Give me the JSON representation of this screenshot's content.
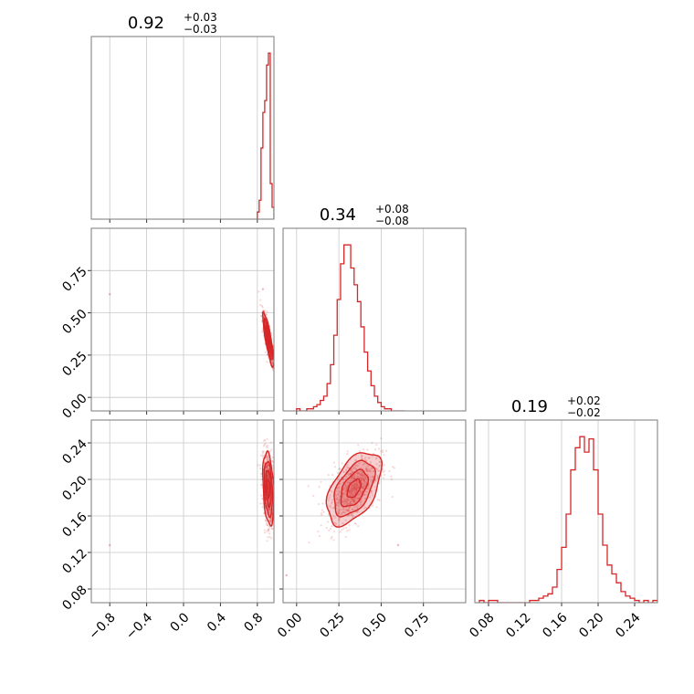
{
  "chart_data": {
    "type": "corner",
    "color": "#d62728",
    "parameters": [
      {
        "title_value": "0.92",
        "title_plus": "+0.03",
        "title_minus": "−0.03",
        "range": [
          -1.0,
          0.98
        ],
        "ticks": [
          -0.8,
          -0.4,
          0.0,
          0.4,
          0.8
        ],
        "tick_labels": [
          "−0.8",
          "−0.4",
          "0.0",
          "0.4",
          "0.8"
        ],
        "hist_bins": [
          0.8,
          0.82,
          0.84,
          0.86,
          0.88,
          0.9,
          0.92,
          0.94,
          0.96,
          0.98
        ],
        "hist_counts": [
          3,
          8,
          30,
          45,
          50,
          65,
          70,
          15,
          5
        ]
      },
      {
        "title_value": "0.34",
        "title_plus": "+0.08",
        "title_minus": "−0.08",
        "range": [
          -0.08,
          1.0
        ],
        "ticks": [
          0.0,
          0.25,
          0.5,
          0.75
        ],
        "tick_labels": [
          "0.00",
          "0.25",
          "0.50",
          "0.75"
        ],
        "hist_bins": [
          0.0,
          0.02,
          0.04,
          0.06,
          0.08,
          0.1,
          0.12,
          0.14,
          0.16,
          0.18,
          0.2,
          0.22,
          0.24,
          0.26,
          0.28,
          0.3,
          0.32,
          0.34,
          0.36,
          0.38,
          0.4,
          0.42,
          0.44,
          0.46,
          0.48,
          0.5,
          0.52,
          0.54,
          0.56,
          0.58,
          0.6,
          0.62,
          0.64
        ],
        "hist_counts": [
          1,
          0,
          0,
          1,
          1,
          2,
          3,
          5,
          7,
          13,
          22,
          36,
          53,
          70,
          79,
          79,
          68,
          60,
          52,
          40,
          28,
          19,
          12,
          7,
          4,
          2,
          1,
          1,
          0,
          0,
          0,
          0
        ]
      },
      {
        "title_value": "0.19",
        "title_plus": "+0.02",
        "title_minus": "−0.02",
        "range": [
          0.065,
          0.265
        ],
        "ticks": [
          0.08,
          0.12,
          0.16,
          0.2,
          0.24
        ],
        "tick_labels": [
          "0.08",
          "0.12",
          "0.16",
          "0.20",
          "0.24"
        ],
        "hist_bins": [
          0.07,
          0.075,
          0.08,
          0.085,
          0.09,
          0.095,
          0.1,
          0.105,
          0.11,
          0.115,
          0.12,
          0.125,
          0.13,
          0.135,
          0.14,
          0.145,
          0.15,
          0.155,
          0.16,
          0.165,
          0.17,
          0.175,
          0.18,
          0.185,
          0.19,
          0.195,
          0.2,
          0.205,
          0.21,
          0.215,
          0.22,
          0.225,
          0.23,
          0.235,
          0.24,
          0.245,
          0.25,
          0.255,
          0.26,
          0.265
        ],
        "hist_counts": [
          1,
          0,
          1,
          1,
          0,
          0,
          0,
          0,
          0,
          0,
          0,
          1,
          1,
          2,
          3,
          4,
          7,
          15,
          25,
          40,
          60,
          70,
          75,
          68,
          74,
          60,
          40,
          26,
          17,
          13,
          9,
          5,
          3,
          2,
          1,
          0,
          1,
          0,
          1
        ]
      }
    ],
    "pairs": [
      {
        "x_param": 0,
        "y_param": 1,
        "center": [
          0.92,
          0.34
        ],
        "sigma": [
          0.03,
          0.08
        ],
        "correlation": -0.85,
        "outliers": [
          [
            -0.8,
            0.61
          ],
          [
            0.86,
            0.64
          ]
        ]
      },
      {
        "x_param": 0,
        "y_param": 2,
        "center": [
          0.92,
          0.19
        ],
        "sigma": [
          0.03,
          0.02
        ],
        "correlation": -0.3,
        "outliers": [
          [
            -0.8,
            0.128
          ]
        ]
      },
      {
        "x_param": 1,
        "y_param": 2,
        "center": [
          0.34,
          0.19
        ],
        "sigma": [
          0.08,
          0.02
        ],
        "correlation": 0.5,
        "outliers": [
          [
            -0.06,
            0.095
          ],
          [
            0.6,
            0.128
          ]
        ]
      }
    ]
  }
}
